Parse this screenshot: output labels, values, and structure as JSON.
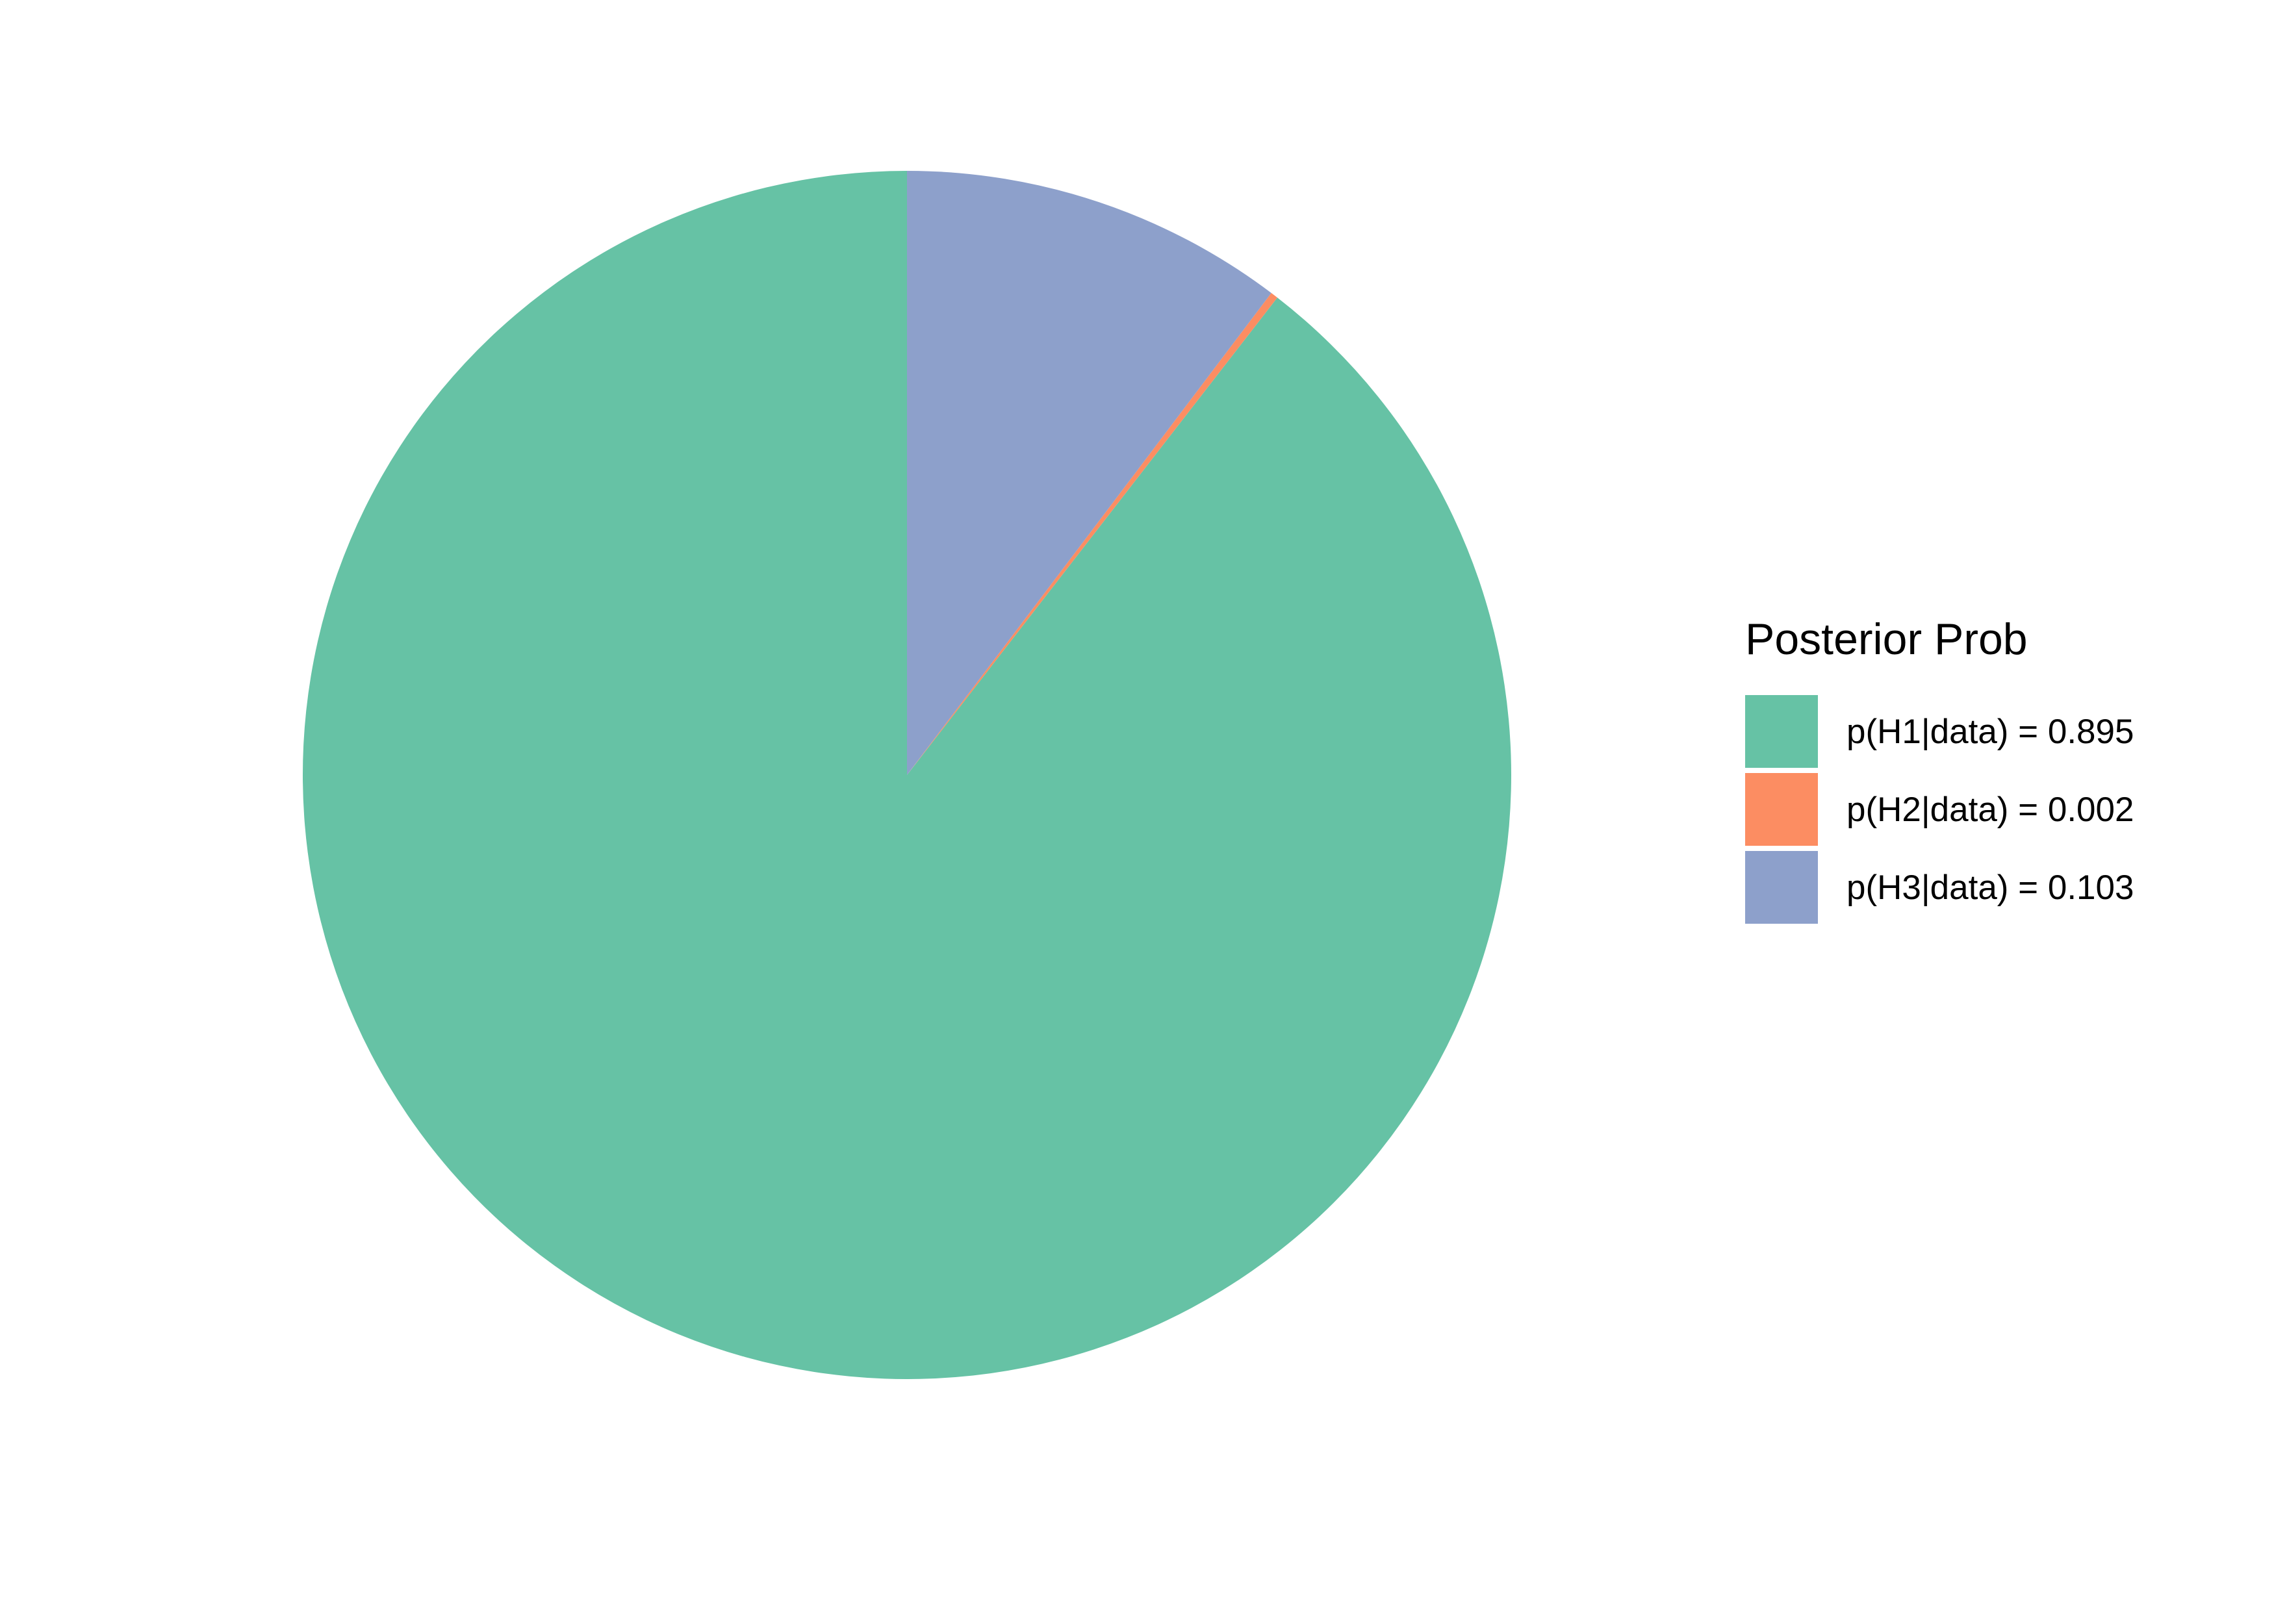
{
  "chart_data": {
    "type": "pie",
    "categories": [
      "p(H1|data) = 0.895",
      "p(H2|data) = 0.002",
      "p(H3|data) = 0.103"
    ],
    "values": [
      0.895,
      0.002,
      0.103
    ],
    "colors": [
      "#66C2A5",
      "#FC8D62",
      "#8DA0CB"
    ],
    "legend": {
      "title": "Posterior Prob",
      "placement": "right",
      "entries": [
        {
          "label": "p(H1|data) = 0.895",
          "color": "#66C2A5"
        },
        {
          "label": "p(H2|data) = 0.002",
          "color": "#FC8D62"
        },
        {
          "label": "p(H3|data) = 0.103",
          "color": "#8DA0CB"
        }
      ]
    },
    "start_angle": "top",
    "direction": "counterclockwise"
  }
}
